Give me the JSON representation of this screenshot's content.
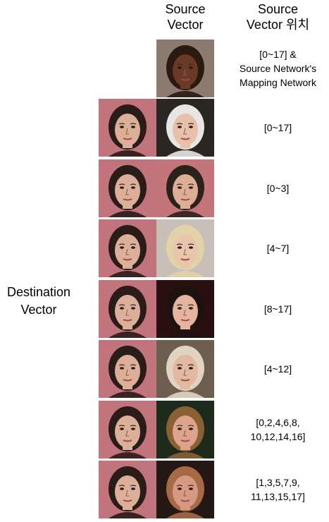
{
  "header": {
    "source_line1": "Source",
    "source_line2": "Vector",
    "position_line1": "Source",
    "position_line2": "Vector 위치"
  },
  "destination_label": {
    "line1": "Destination",
    "line2": "Vector"
  },
  "top_row": {
    "lines": [
      "[0~17] &",
      "Source Network's",
      "Mapping Network"
    ],
    "face_bg": "#8c7b6e",
    "skin": "#6b3a26",
    "hair": "#2a1a12"
  },
  "rows": [
    {
      "lines": [
        "[0~17]"
      ],
      "src": {
        "bg": "#2a2622",
        "skin": "#e6c0a8",
        "hair": "#e8e6e4"
      }
    },
    {
      "lines": [
        "[0~3]"
      ],
      "src": {
        "bg": "#c4757a",
        "skin": "#dcae96",
        "hair": "#2c221c"
      }
    },
    {
      "lines": [
        "[4~7]"
      ],
      "src": {
        "bg": "#c8c0b8",
        "skin": "#e8c6ac",
        "hair": "#e2d2a8"
      }
    },
    {
      "lines": [
        "[8~17]"
      ],
      "src": {
        "bg": "#2a1012",
        "skin": "#e4b4a0",
        "hair": "#1e1210"
      }
    },
    {
      "lines": [
        "[4~12]"
      ],
      "src": {
        "bg": "#6e5e50",
        "skin": "#e2b8a0",
        "hair": "#e0d4c0"
      }
    },
    {
      "lines": [
        "[0,2,4,6,8,",
        "10,12,14,16]"
      ],
      "src": {
        "bg": "#1e2a1c",
        "skin": "#dca48a",
        "hair": "#8a6034"
      }
    },
    {
      "lines": [
        "[1,3,5,7,9,",
        "11,13,15,17]"
      ],
      "src": {
        "bg": "#241814",
        "skin": "#d69a82",
        "hair": "#a86a44"
      }
    }
  ],
  "destination_face": {
    "bg": "#c2747c",
    "skin": "#dcb098",
    "hair": "#2a1c18"
  }
}
